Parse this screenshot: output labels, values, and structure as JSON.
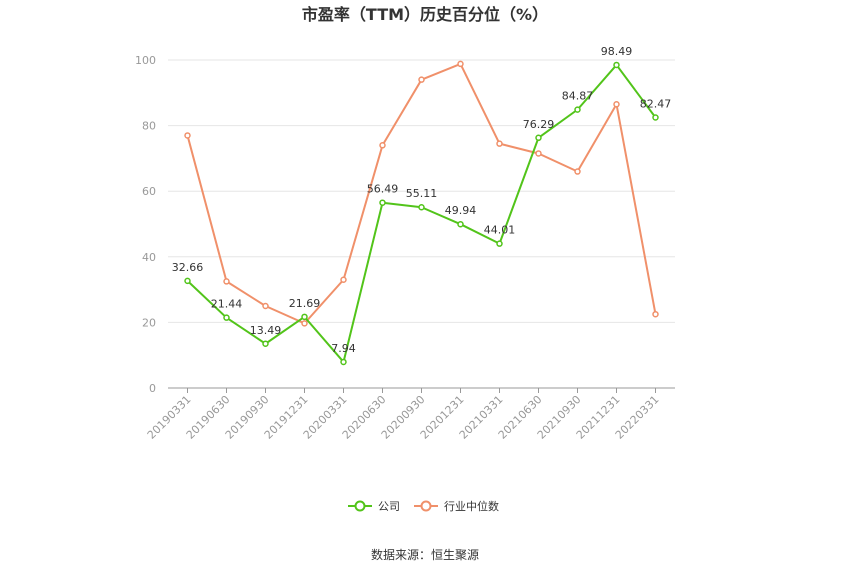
{
  "chart_data": {
    "type": "line",
    "title": "市盈率（TTM）历史百分位（%）",
    "categories": [
      "20190331",
      "20190630",
      "20190930",
      "20191231",
      "20200331",
      "20200630",
      "20200930",
      "20201231",
      "20210331",
      "20210630",
      "20210930",
      "20211231",
      "20220331"
    ],
    "ylim": [
      0,
      100
    ],
    "yticks": [
      0,
      20,
      40,
      60,
      80,
      100
    ],
    "grid": true,
    "legend_position": "bottom",
    "series": [
      {
        "name": "公司",
        "color": "#52c41a",
        "values": [
          32.66,
          21.44,
          13.49,
          21.69,
          7.94,
          56.49,
          55.11,
          49.94,
          44.01,
          76.29,
          84.87,
          98.49,
          82.47
        ],
        "labels": [
          "32.66",
          "21.44",
          "13.49",
          "21.69",
          "7.94",
          "56.49",
          "55.11",
          "49.94",
          "44.01",
          "76.29",
          "84.87",
          "98.49",
          "82.47"
        ]
      },
      {
        "name": "行业中位数",
        "color": "#f0906a",
        "values": [
          77.0,
          32.5,
          25.0,
          19.7,
          33.0,
          74.0,
          94.0,
          98.8,
          74.5,
          71.5,
          66.0,
          86.5,
          22.5
        ]
      }
    ],
    "source": "数据来源：恒生聚源"
  }
}
